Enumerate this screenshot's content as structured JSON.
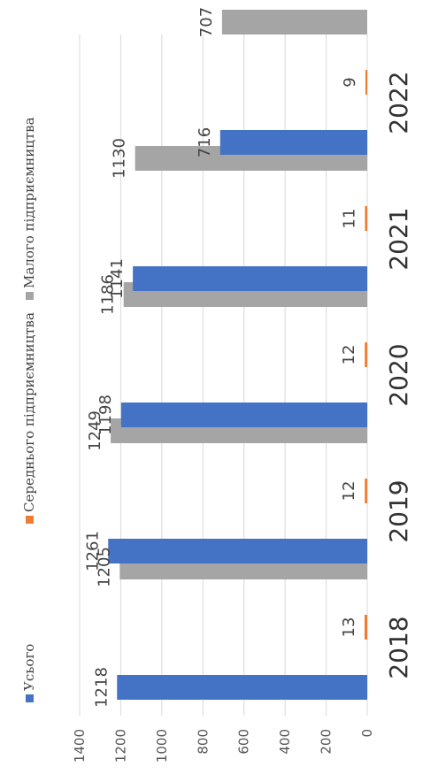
{
  "chart_data": {
    "type": "bar",
    "orientation": "horizontal",
    "categories": [
      "2018",
      "2019",
      "2020",
      "2021",
      "2022"
    ],
    "series": [
      {
        "name": "Усього",
        "color": "#4472c4",
        "values": [
          1218,
          1261,
          1198,
          1141,
          716
        ]
      },
      {
        "name": "Середнього підприємництва",
        "color": "#ed7d31",
        "values": [
          13,
          12,
          12,
          11,
          9
        ]
      },
      {
        "name": "Малого підприємництва",
        "color": "#a5a5a5",
        "values": [
          1205,
          1249,
          1186,
          1130,
          707
        ]
      }
    ],
    "value_axis": {
      "min": 0,
      "max": 1400,
      "step": 200
    },
    "ticks": [
      "0",
      "200",
      "400",
      "600",
      "800",
      "1000",
      "1200",
      "1400"
    ],
    "data_labels": true,
    "grid": true,
    "legend_position": "top"
  }
}
